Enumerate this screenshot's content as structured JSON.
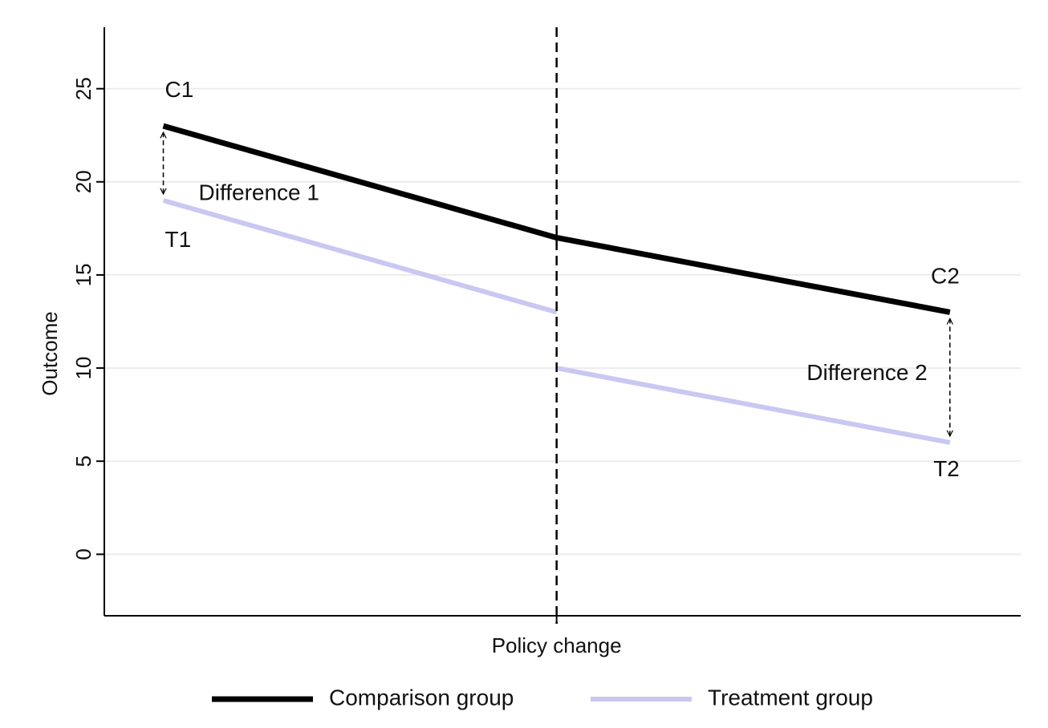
{
  "chart_data": {
    "type": "line",
    "title": "",
    "xlabel": "",
    "ylabel": "Outcome",
    "ylim": [
      -3.3,
      28.3
    ],
    "xlim": [
      -1.15,
      1.18
    ],
    "yticks": [
      0,
      5,
      10,
      15,
      20,
      25
    ],
    "grid": true,
    "x_ticks": [
      {
        "x": 0,
        "label": "Policy change"
      }
    ],
    "vline": {
      "x": 0,
      "style": "dashed",
      "label": "Policy change"
    },
    "series": [
      {
        "name": "Comparison group",
        "color": "#000000",
        "segments": [
          [
            {
              "x": -1,
              "y": 23
            },
            {
              "x": 0,
              "y": 17
            },
            {
              "x": 1,
              "y": 13
            }
          ]
        ]
      },
      {
        "name": "Treatment group",
        "color": "#c8c8f2",
        "segments": [
          [
            {
              "x": -1,
              "y": 19
            },
            {
              "x": 0,
              "y": 13
            }
          ],
          [
            {
              "x": 0,
              "y": 10
            },
            {
              "x": 1,
              "y": 6
            }
          ]
        ]
      }
    ],
    "annotations": [
      {
        "text": "C1",
        "x": -1,
        "y": 23
      },
      {
        "text": "T1",
        "x": -1,
        "y": 19
      },
      {
        "text": "C2",
        "x": 1,
        "y": 13
      },
      {
        "text": "T2",
        "x": 1,
        "y": 6
      },
      {
        "text": "Difference 1",
        "x": -1,
        "y_from": 23,
        "y_to": 19
      },
      {
        "text": "Difference 2",
        "x": 1,
        "y_from": 13,
        "y_to": 6
      }
    ],
    "legend": {
      "position": "bottom",
      "entries": [
        "Comparison group",
        "Treatment group"
      ]
    }
  }
}
